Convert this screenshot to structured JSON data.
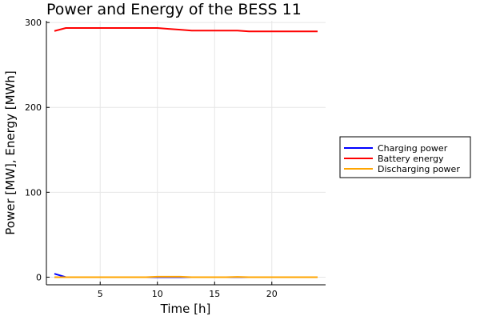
{
  "chart_data": {
    "type": "line",
    "title": "Power and Energy of the BESS 11",
    "xlabel": "Time [h]",
    "ylabel": "Power [MW], Energy [MWh]",
    "xlim": [
      0.3,
      24.7
    ],
    "ylim": [
      -9,
      302
    ],
    "xticks": [
      5,
      10,
      15,
      20
    ],
    "yticks": [
      0,
      100,
      200,
      300
    ],
    "grid": true,
    "legend_position": "right",
    "x": [
      1,
      2,
      3,
      4,
      5,
      6,
      7,
      8,
      9,
      10,
      11,
      12,
      13,
      14,
      15,
      16,
      17,
      18,
      19,
      20,
      21,
      22,
      23,
      24
    ],
    "series": [
      {
        "name": "Charging power",
        "color": "#0000ff",
        "values": [
          4,
          0,
          0,
          0,
          0,
          0,
          0,
          0,
          0,
          0,
          0,
          0,
          0,
          0,
          0,
          0,
          0,
          0,
          0,
          0,
          0,
          0,
          0,
          0
        ]
      },
      {
        "name": "Battery energy",
        "color": "#ff0000",
        "values": [
          290,
          293.5,
          293.5,
          293.5,
          293.5,
          293.5,
          293.5,
          293.5,
          293.5,
          293.5,
          292.5,
          291.5,
          290.5,
          290.5,
          290.5,
          290.5,
          290.5,
          289.5,
          289.5,
          289.5,
          289.5,
          289.5,
          289.5,
          289.5
        ]
      },
      {
        "name": "Discharging power",
        "color": "#ffa500",
        "values": [
          0,
          0,
          0,
          0,
          0,
          0,
          0,
          0,
          0,
          0.5,
          0.5,
          0.5,
          0,
          0,
          0,
          0,
          0.3,
          0,
          0,
          0,
          0,
          0,
          0,
          0
        ]
      }
    ]
  }
}
